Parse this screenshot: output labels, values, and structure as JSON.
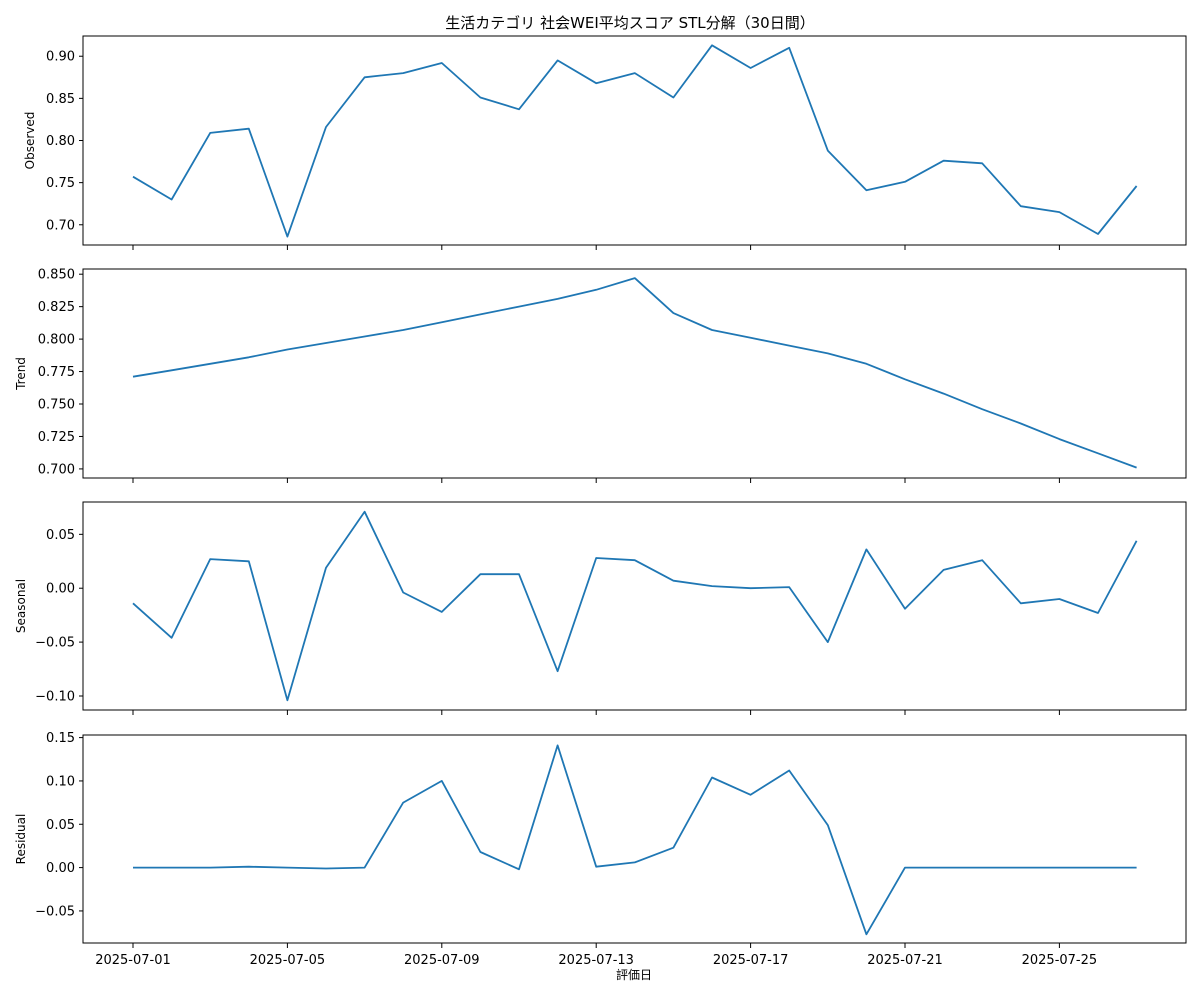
{
  "chart_data": {
    "title": "生活カテゴリ 社会WEI平均スコア STL分解（30日間）",
    "xlabel": "評価日",
    "type": "line",
    "x": [
      "2025-07-01",
      "2025-07-02",
      "2025-07-03",
      "2025-07-04",
      "2025-07-05",
      "2025-07-06",
      "2025-07-07",
      "2025-07-08",
      "2025-07-09",
      "2025-07-10",
      "2025-07-11",
      "2025-07-12",
      "2025-07-13",
      "2025-07-14",
      "2025-07-15",
      "2025-07-16",
      "2025-07-17",
      "2025-07-18",
      "2025-07-19",
      "2025-07-20",
      "2025-07-21",
      "2025-07-22",
      "2025-07-23",
      "2025-07-24",
      "2025-07-25",
      "2025-07-26",
      "2025-07-27"
    ],
    "x_ticks": [
      "2025-07-01",
      "2025-07-05",
      "2025-07-09",
      "2025-07-13",
      "2025-07-17",
      "2025-07-21",
      "2025-07-25"
    ],
    "line_color": "#1f77b4",
    "grid": false,
    "panels": [
      {
        "ylabel": "Observed",
        "ylim": [
          0.676,
          0.924
        ],
        "yticks": [
          "0.70",
          "0.75",
          "0.80",
          "0.85",
          "0.90"
        ],
        "values": [
          0.757,
          0.73,
          0.809,
          0.814,
          0.686,
          0.816,
          0.875,
          0.88,
          0.892,
          0.851,
          0.837,
          0.895,
          0.868,
          0.88,
          0.851,
          0.913,
          0.886,
          0.91,
          0.788,
          0.741,
          0.751,
          0.776,
          0.773,
          0.722,
          0.715,
          0.689,
          0.746
        ]
      },
      {
        "ylabel": "Trend",
        "ylim": [
          0.693,
          0.854
        ],
        "yticks": [
          "0.700",
          "0.725",
          "0.750",
          "0.775",
          "0.800",
          "0.825",
          "0.850"
        ],
        "values": [
          0.771,
          0.776,
          0.781,
          0.786,
          0.792,
          0.797,
          0.802,
          0.807,
          0.813,
          0.819,
          0.825,
          0.831,
          0.838,
          0.847,
          0.82,
          0.807,
          0.801,
          0.795,
          0.789,
          0.781,
          0.769,
          0.758,
          0.746,
          0.735,
          0.723,
          0.712,
          0.701
        ]
      },
      {
        "ylabel": "Seasonal",
        "ylim": [
          -0.113,
          0.08
        ],
        "yticks": [
          "−0.10",
          "−0.05",
          "0.00",
          "0.05"
        ],
        "values": [
          -0.014,
          -0.046,
          0.027,
          0.025,
          -0.104,
          0.019,
          0.071,
          -0.004,
          -0.022,
          0.013,
          0.013,
          -0.077,
          0.028,
          0.026,
          0.007,
          0.002,
          0.0,
          0.001,
          -0.05,
          0.036,
          -0.019,
          0.017,
          0.026,
          -0.014,
          -0.01,
          -0.023,
          0.044
        ]
      },
      {
        "ylabel": "Residual",
        "ylim": [
          -0.087,
          0.153
        ],
        "yticks": [
          "−0.05",
          "0.00",
          "0.05",
          "0.10",
          "0.15"
        ],
        "values": [
          0.0,
          0.0,
          0.0,
          0.001,
          0.0,
          -0.001,
          0.0,
          0.075,
          0.1,
          0.018,
          -0.002,
          0.141,
          0.001,
          0.006,
          0.023,
          0.104,
          0.084,
          0.112,
          0.049,
          -0.077,
          0.0,
          0.0,
          0.0,
          0.0,
          0.0,
          0.0,
          0.0
        ]
      }
    ]
  }
}
